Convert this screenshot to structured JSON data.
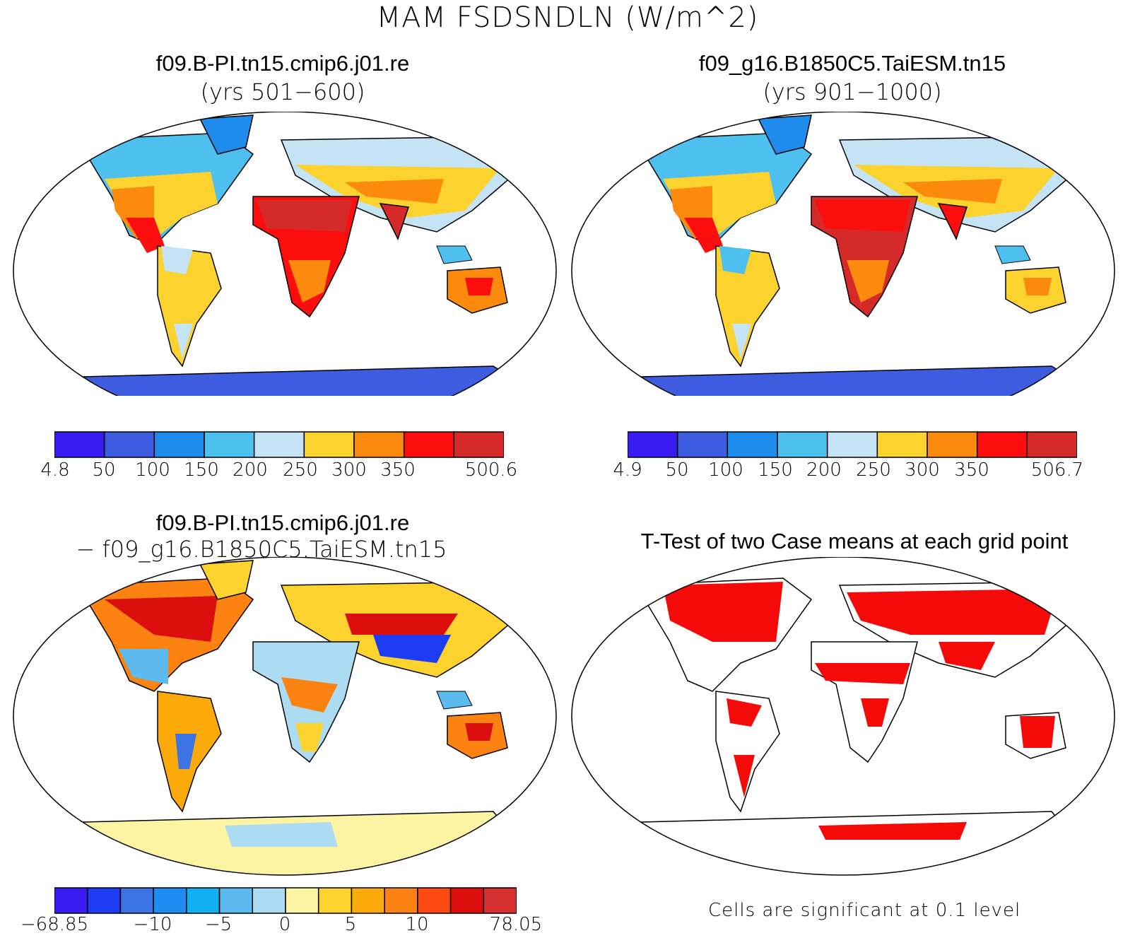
{
  "title": "MAM FSDSNDLN (W/m^2)",
  "panels": {
    "top_left": {
      "title": "f09.B-PI.tn15.cmip6.j01.re",
      "subtitle": "(yrs 501−600)",
      "colorbar": {
        "colors": [
          "#3a1cf2",
          "#3d5ce0",
          "#1e8cec",
          "#4ec0f0",
          "#c4e4f6",
          "#fcd22e",
          "#fc8a0c",
          "#fc0e0e",
          "#d42a2a"
        ],
        "labels": [
          "4.8",
          "50",
          "100",
          "150",
          "200",
          "250",
          "300",
          "350",
          "500.6"
        ]
      }
    },
    "top_right": {
      "title": "f09_g16.B1850C5.TaiESM.tn15",
      "subtitle": "(yrs 901−1000)",
      "colorbar": {
        "colors": [
          "#3a1cf2",
          "#3d5ce0",
          "#1e8cec",
          "#4ec0f0",
          "#c4e4f6",
          "#fcd22e",
          "#fc8a0c",
          "#fc0e0e",
          "#d42a2a"
        ],
        "labels": [
          "4.9",
          "50",
          "100",
          "150",
          "200",
          "250",
          "300",
          "350",
          "506.7"
        ]
      }
    },
    "bottom_left": {
      "title": "f09.B-PI.tn15.cmip6.j01.re",
      "subtitle": "− f09_g16.B1850C5.TaiESM.tn15",
      "colorbar": {
        "colors": [
          "#3a1cf2",
          "#1e3cf4",
          "#3c74e4",
          "#1e8cf2",
          "#10b0f2",
          "#5cbaee",
          "#acdcf2",
          "#fcf4a2",
          "#fcd22e",
          "#fcaa0a",
          "#fc8212",
          "#fc4a10",
          "#dc0e0e",
          "#d42e2e"
        ],
        "labels": [
          "−68.85",
          "−10",
          "−5",
          "0",
          "5",
          "10",
          "78.05"
        ]
      }
    },
    "bottom_right": {
      "title": "T-Test of two Case means at each grid point",
      "note": "Cells are significant at 0.1 level",
      "significant_color": "#f50a0a"
    }
  },
  "legend_colors": {
    "land_outline": "#000000",
    "map_background": "#ffffff"
  }
}
